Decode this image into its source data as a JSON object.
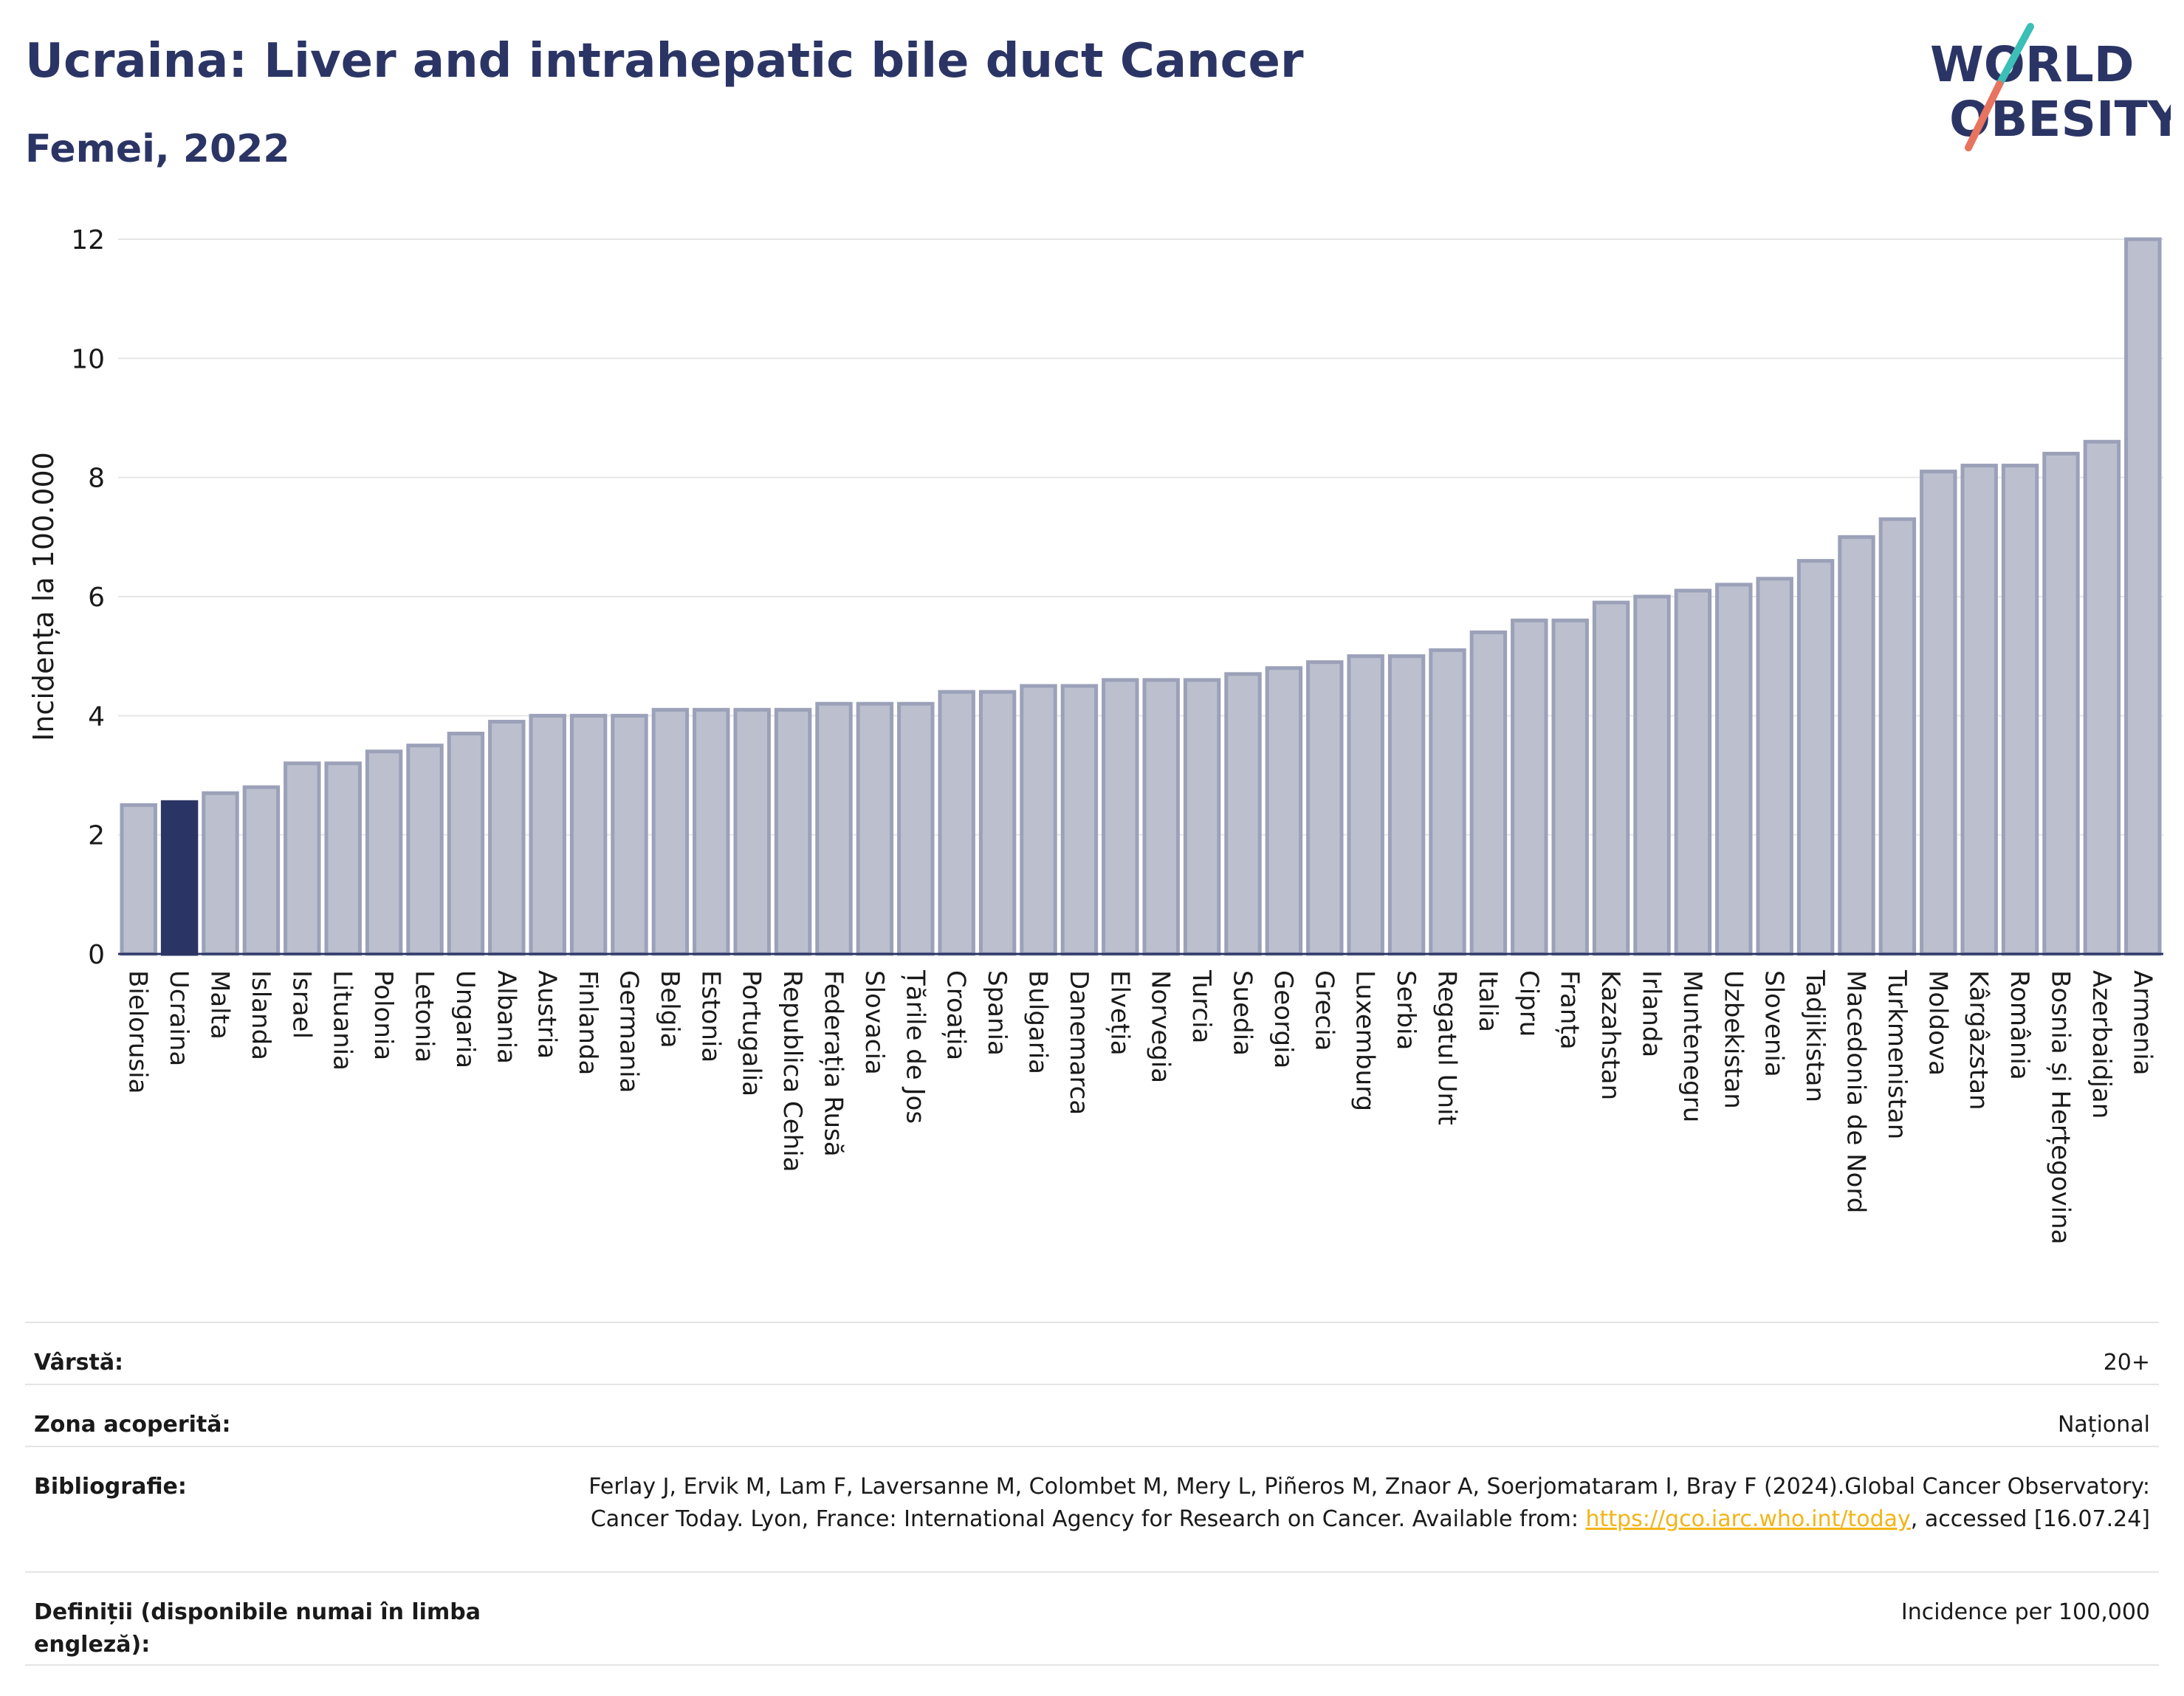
{
  "header": {
    "title": "Ucraina: Liver and intrahepatic bile duct Cancer",
    "subtitle": "Femei, 2022",
    "logo_line1": "WORLD",
    "logo_line2": "OBESITY"
  },
  "colors": {
    "bar_default": "#bcc0ce",
    "bar_stroke": "#9ba1b8",
    "bar_highlight": "#2b3565",
    "title": "#2b3565",
    "logo_slash_top": "#3bbfb7",
    "logo_slash_bottom": "#e8735f"
  },
  "chart_data": {
    "type": "bar",
    "ylabel": "Incidența la 100.000",
    "ylim": [
      0,
      12
    ],
    "yticks": [
      0,
      2,
      4,
      6,
      8,
      10,
      12
    ],
    "grid": true,
    "highlight": "Ucraina",
    "categories": [
      "Bielorusia",
      "Ucraina",
      "Malta",
      "Islanda",
      "Israel",
      "Lituania",
      "Polonia",
      "Letonia",
      "Ungaria",
      "Albania",
      "Austria",
      "Finlanda",
      "Germania",
      "Belgia",
      "Estonia",
      "Portugalia",
      "Republica Cehia",
      "Federația Rusă",
      "Slovacia",
      "Țările de Jos",
      "Croația",
      "Spania",
      "Bulgaria",
      "Danemarca",
      "Elveția",
      "Norvegia",
      "Turcia",
      "Suedia",
      "Georgia",
      "Grecia",
      "Luxemburg",
      "Serbia",
      "Regatul Unit",
      "Italia",
      "Cipru",
      "Franța",
      "Kazahstan",
      "Irlanda",
      "Muntenegru",
      "Uzbekistan",
      "Slovenia",
      "Tadjikistan",
      "Macedonia de Nord",
      "Turkmenistan",
      "Moldova",
      "Kârgâzstan",
      "România",
      "Bosnia și Herțegovina",
      "Azerbaidjan",
      "Armenia"
    ],
    "values": [
      2.5,
      2.55,
      2.7,
      2.8,
      3.2,
      3.2,
      3.4,
      3.5,
      3.7,
      3.9,
      4.0,
      4.0,
      4.0,
      4.1,
      4.1,
      4.1,
      4.1,
      4.2,
      4.2,
      4.2,
      4.4,
      4.4,
      4.5,
      4.5,
      4.6,
      4.6,
      4.6,
      4.7,
      4.8,
      4.9,
      5.0,
      5.0,
      5.1,
      5.4,
      5.6,
      5.6,
      5.9,
      6.0,
      6.1,
      6.2,
      6.3,
      6.6,
      7.0,
      7.3,
      8.1,
      8.2,
      8.2,
      8.4,
      8.6,
      12.0
    ]
  },
  "meta": {
    "rows": [
      {
        "label": "Vârstă:",
        "value": "20+"
      },
      {
        "label": "Zona acoperită:",
        "value": "Național"
      },
      {
        "label": "Bibliografie:",
        "value_pre": "Ferlay J, Ervik M, Lam F, Laversanne M, Colombet M, Mery L, Piñeros M, Znaor A, Soerjomataram I, Bray F (2024).Global Cancer Observatory: Cancer Today. Lyon, France: International Agency for Research on Cancer. Available from: ",
        "link": "https://gco.iarc.who.int/today",
        "value_post": ", accessed [16.07.24]"
      },
      {
        "label": "Definiții (disponibile numai în limba engleză):",
        "value": "Incidence per 100,000"
      }
    ]
  }
}
